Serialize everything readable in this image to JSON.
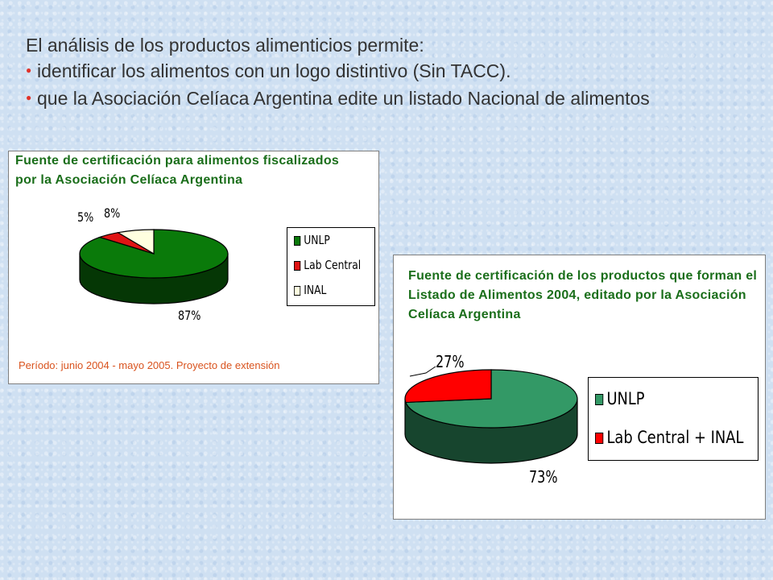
{
  "intro": {
    "heading": "El análisis de los productos alimenticios permite:",
    "bullets": [
      "identificar los alimentos con un logo distintivo (Sin TACC).",
      "que la Asociación Celíaca Argentina edite un listado Nacional de alimentos"
    ],
    "bullet_color": "#e0322a"
  },
  "chart_data": [
    {
      "type": "pie",
      "style": "3d",
      "title": "Fuente de certificación para alimentos fiscalizados por la Asociación Celíaca Argentina",
      "categories": [
        "UNLP",
        "Lab Central",
        "INAL"
      ],
      "values": [
        87,
        5,
        8
      ],
      "data_labels": [
        "87%",
        "5%",
        "8%"
      ],
      "colors": [
        "#0a7a0a",
        "#e01414",
        "#ffffe0"
      ],
      "legend_position": "right",
      "note": "Período: junio 2004 - mayo 2005. Proyecto de extensión"
    },
    {
      "type": "pie",
      "style": "3d",
      "title": "Fuente de certificación de los productos que forman el Listado de Alimentos 2004, editado por la Asociación Celíaca Argentina",
      "categories": [
        "UNLP",
        "Lab Central + INAL"
      ],
      "values": [
        73,
        27
      ],
      "data_labels": [
        "73%",
        "27%"
      ],
      "colors": [
        "#339966",
        "#ff0000"
      ],
      "legend_position": "right"
    }
  ]
}
